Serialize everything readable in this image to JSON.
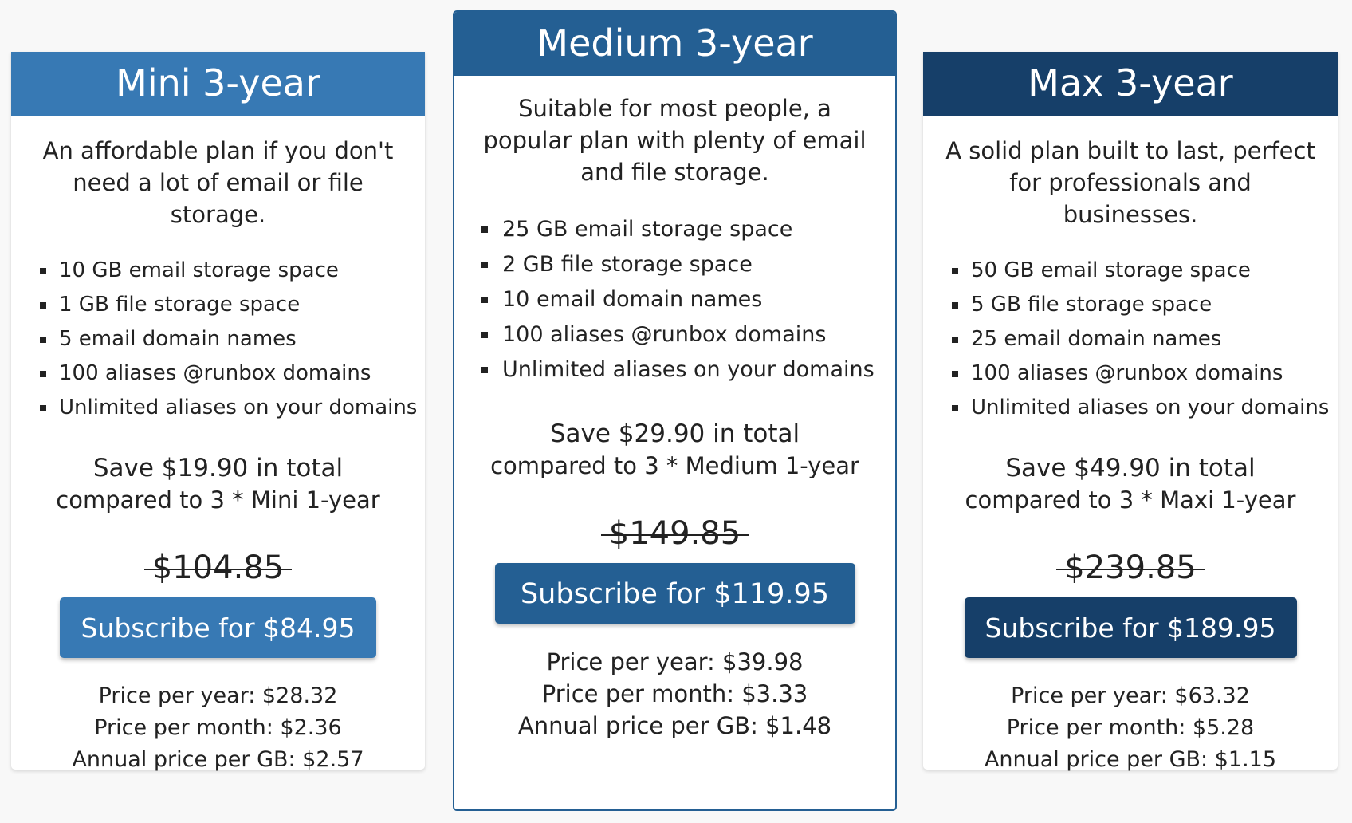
{
  "plans": [
    {
      "title": "Mini 3-year",
      "description": "An affordable plan if you don't need a lot of email or file storage.",
      "features": [
        "10 GB email storage space",
        "1 GB file storage space",
        "5 email domain names",
        "100 aliases @runbox domains",
        "Unlimited aliases on your domains"
      ],
      "save_line1": "Save $19.90 in total",
      "save_line2": "compared to 3 * Mini 1-year",
      "old_price": "$104.85",
      "subscribe_label": "Subscribe for $84.95",
      "price_per_year": "Price per year: $28.32",
      "price_per_month": "Price per month: $2.36",
      "annual_price_per_gb": "Annual price per GB: $2.57",
      "color": "#3779b4"
    },
    {
      "title": "Medium 3-year",
      "description": "Suitable for most people, a popular plan with plenty of email and file storage.",
      "features": [
        "25 GB email storage space",
        "2 GB file storage space",
        "10 email domain names",
        "100 aliases @runbox domains",
        "Unlimited aliases on your domains"
      ],
      "save_line1": "Save $29.90 in total",
      "save_line2": "compared to 3 * Medium 1-year",
      "old_price": "$149.85",
      "subscribe_label": "Subscribe for $119.95",
      "price_per_year": "Price per year: $39.98",
      "price_per_month": "Price per month: $3.33",
      "annual_price_per_gb": "Annual price per GB: $1.48",
      "color": "#245f93"
    },
    {
      "title": "Max 3-year",
      "description": "A solid plan built to last, perfect for professionals and businesses.",
      "features": [
        "50 GB email storage space",
        "5 GB file storage space",
        "25 email domain names",
        "100 aliases @runbox domains",
        "Unlimited aliases on your domains"
      ],
      "save_line1": "Save $49.90 in total",
      "save_line2": "compared to 3 * Maxi 1-year",
      "old_price": "$239.85",
      "subscribe_label": "Subscribe for $189.95",
      "price_per_year": "Price per year: $63.32",
      "price_per_month": "Price per month: $5.28",
      "annual_price_per_gb": "Annual price per GB: $1.15",
      "color": "#163f69"
    }
  ]
}
